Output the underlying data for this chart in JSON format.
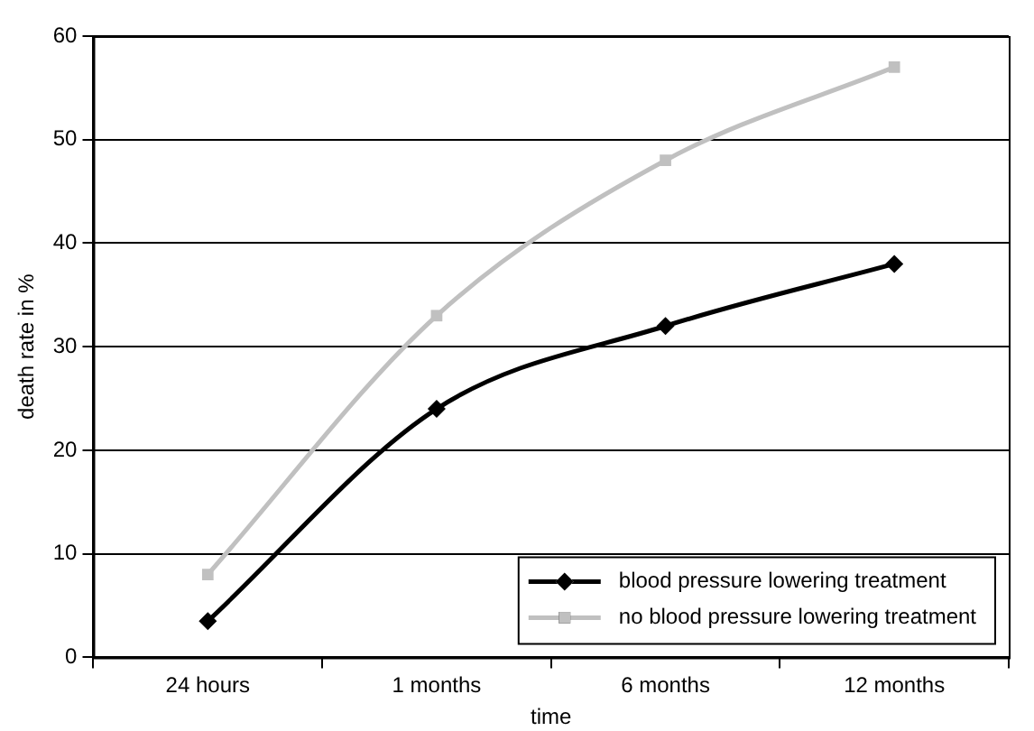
{
  "chart_data": {
    "type": "line",
    "xlabel": "time",
    "ylabel": "death rate in %",
    "categories": [
      "24 hours",
      "1 months",
      "6 months",
      "12 months"
    ],
    "series": [
      {
        "name": "blood pressure lowering treatment",
        "color": "#000000",
        "marker": "diamond",
        "values": [
          3.5,
          24,
          32,
          38
        ]
      },
      {
        "name": "no blood pressure lowering treatment",
        "color": "#c0c0c0",
        "marker": "square",
        "values": [
          8,
          33,
          48,
          57
        ]
      }
    ],
    "ylim": [
      0,
      60
    ],
    "yticks": [
      0,
      10,
      20,
      30,
      40,
      50,
      60
    ],
    "grid": "y",
    "legend": "bottom right"
  }
}
